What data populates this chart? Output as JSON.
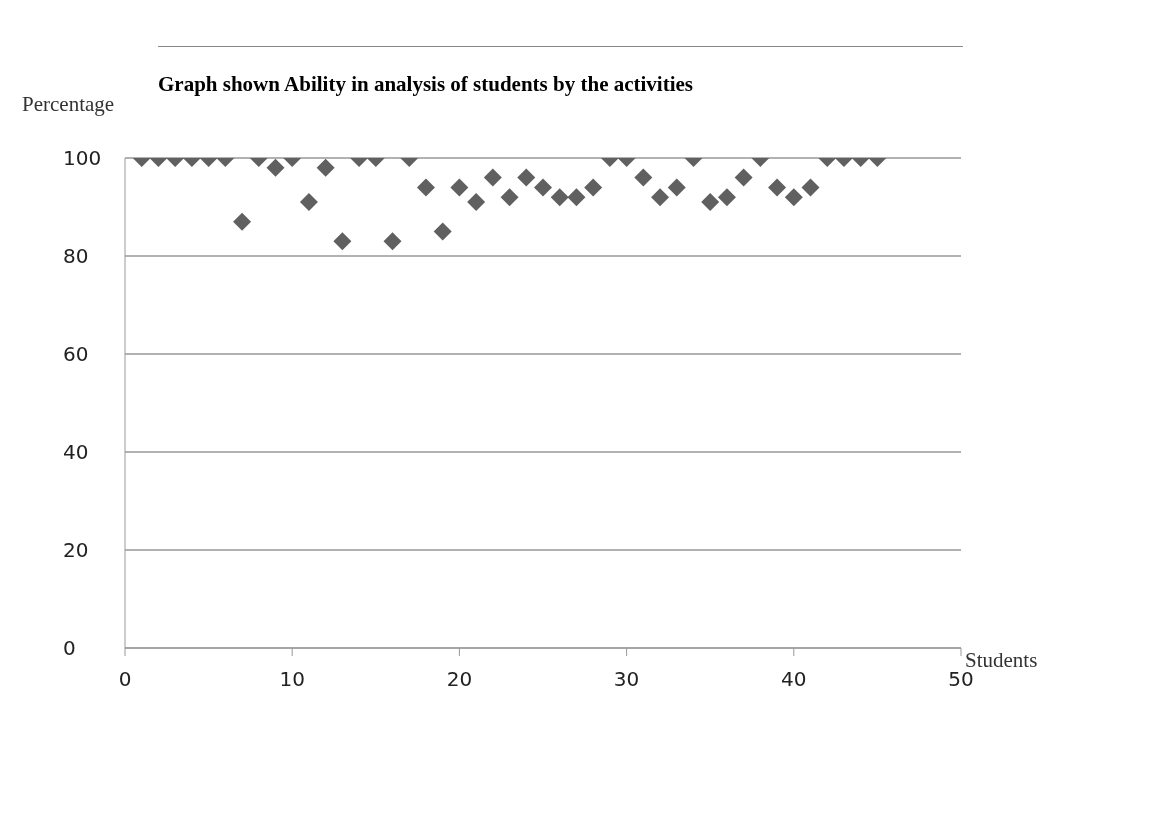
{
  "chart_data": {
    "type": "scatter",
    "title": "Graph shown Ability in analysis of students by the activities",
    "xlabel": "Students",
    "ylabel": "Percentage",
    "x": [
      1,
      2,
      3,
      4,
      5,
      6,
      7,
      8,
      9,
      10,
      11,
      12,
      13,
      14,
      15,
      16,
      17,
      18,
      19,
      20,
      21,
      22,
      23,
      24,
      25,
      26,
      27,
      28,
      29,
      30,
      31,
      32,
      33,
      34,
      35,
      36,
      37,
      38,
      39,
      40,
      41,
      42,
      43,
      44,
      45
    ],
    "series": [
      {
        "color": "#606060",
        "values": [
          100,
          100,
          100,
          100,
          100,
          100,
          87,
          100,
          98,
          100,
          91,
          98,
          83,
          100,
          100,
          83,
          100,
          94,
          85,
          94,
          91,
          96,
          92,
          96,
          94,
          92,
          92,
          94,
          100,
          100,
          96,
          92,
          94,
          100,
          91,
          92,
          96,
          100,
          94,
          92,
          94,
          100,
          100,
          100,
          100
        ]
      }
    ],
    "xlim": [
      0,
      50
    ],
    "xticks": [
      0,
      10,
      20,
      30,
      40,
      50
    ],
    "ylim": [
      0,
      100
    ],
    "yticks": [
      0,
      20,
      40,
      60,
      80,
      100
    ],
    "grid": "y",
    "marker": "diamond",
    "legend": false
  }
}
